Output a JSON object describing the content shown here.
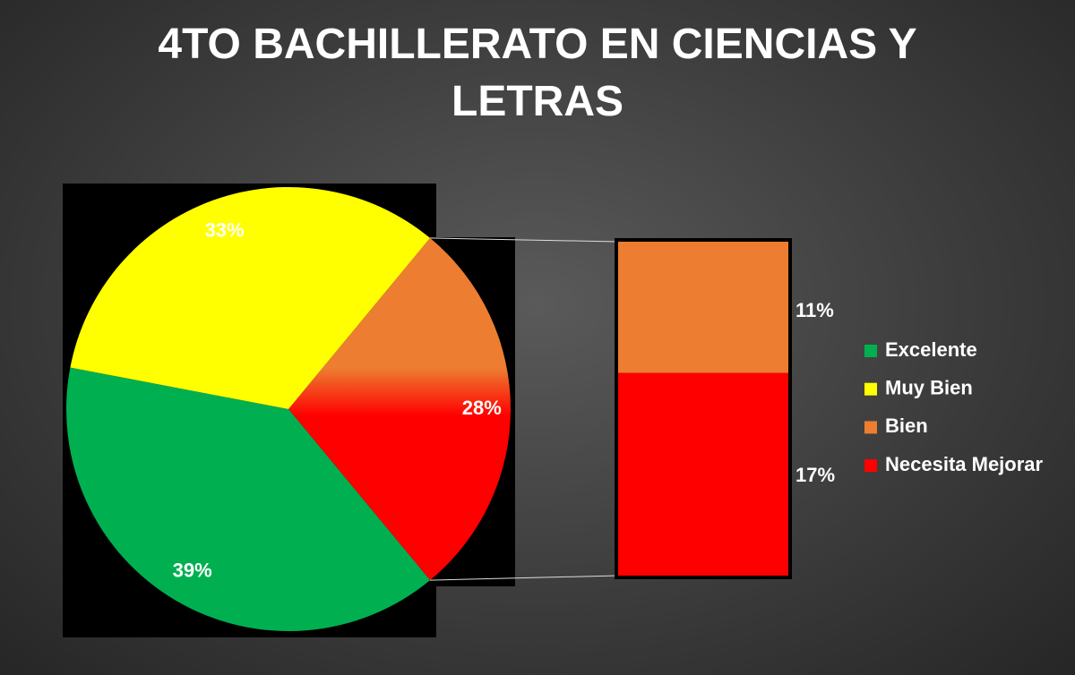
{
  "chart_data": {
    "type": "pie-of-bar",
    "title": "4TO BACHILLERATO EN CIENCIAS Y LETRAS",
    "categories": [
      "Excelente",
      "Muy Bien",
      "Bien",
      "Necesita Mejorar"
    ],
    "values": [
      39,
      33,
      11,
      17
    ],
    "value_labels": [
      "39%",
      "33%",
      "11%",
      "17%"
    ],
    "colors": [
      "#00b050",
      "#ffff00",
      "#ed7d31",
      "#ff0000"
    ],
    "other_value": 28,
    "other_label": "28%",
    "legend": "right"
  }
}
